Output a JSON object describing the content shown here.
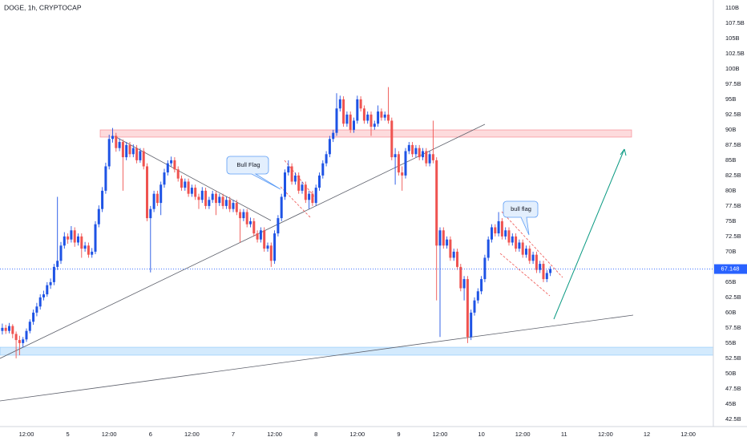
{
  "chart_data": {
    "type": "candlestick",
    "title": "DOGE, 1h, CRYPTOCAP",
    "up_color": "#1e53e5",
    "down_color": "#ef5350",
    "price_line_color": "#2962ff",
    "ylim": [
      41.3,
      111.3
    ],
    "yticks": [
      {
        "value": 110,
        "label": "110B"
      },
      {
        "value": 107.5,
        "label": "107.5B"
      },
      {
        "value": 105,
        "label": "105B"
      },
      {
        "value": 102.5,
        "label": "102.5B"
      },
      {
        "value": 100,
        "label": "100B"
      },
      {
        "value": 97.5,
        "label": "97.5B"
      },
      {
        "value": 95,
        "label": "95B"
      },
      {
        "value": 92.5,
        "label": "92.5B"
      },
      {
        "value": 90,
        "label": "90B"
      },
      {
        "value": 87.5,
        "label": "87.5B"
      },
      {
        "value": 85,
        "label": "85B"
      },
      {
        "value": 82.5,
        "label": "82.5B"
      },
      {
        "value": 80,
        "label": "80B"
      },
      {
        "value": 77.5,
        "label": "77.5B"
      },
      {
        "value": 75,
        "label": "75B"
      },
      {
        "value": 72.5,
        "label": "72.5B"
      },
      {
        "value": 70,
        "label": "70B"
      },
      {
        "value": 65,
        "label": "65B"
      },
      {
        "value": 62.5,
        "label": "62.5B"
      },
      {
        "value": 60,
        "label": "60B"
      },
      {
        "value": 57.5,
        "label": "57.5B"
      },
      {
        "value": 55,
        "label": "55B"
      },
      {
        "value": 52.5,
        "label": "52.5B"
      },
      {
        "value": 50,
        "label": "50B"
      },
      {
        "value": 47.5,
        "label": "47.5B"
      },
      {
        "value": 45,
        "label": "45B"
      },
      {
        "value": 42.5,
        "label": "42.5B"
      }
    ],
    "last_price": 67.148,
    "annotations": [
      "Bull Flag",
      "bull flag"
    ],
    "categories": [
      null,
      null,
      null,
      null,
      null,
      null,
      null,
      "12:00",
      null,
      null,
      null,
      null,
      null,
      null,
      null,
      null,
      null,
      null,
      null,
      "5",
      null,
      null,
      null,
      null,
      null,
      null,
      null,
      null,
      null,
      null,
      null,
      "12:00",
      null,
      null,
      null,
      null,
      null,
      null,
      null,
      null,
      null,
      null,
      null,
      "6",
      null,
      null,
      null,
      null,
      null,
      null,
      null,
      null,
      null,
      null,
      null,
      "12:00",
      null,
      null,
      null,
      null,
      null,
      null,
      null,
      null,
      null,
      null,
      null,
      "7",
      null,
      null,
      null,
      null,
      null,
      null,
      null,
      null,
      null,
      null,
      null,
      "12:00",
      null,
      null,
      null,
      null,
      null,
      null,
      null,
      null,
      null,
      null,
      null,
      "8",
      null,
      null,
      null,
      null,
      null,
      null,
      null,
      null,
      null,
      null,
      null,
      "12:00",
      null,
      null,
      null,
      null,
      null,
      null,
      null,
      null,
      null,
      null,
      null,
      "9",
      null,
      null,
      null,
      null,
      null,
      null,
      null,
      null,
      null,
      null,
      null,
      "12:00",
      null,
      null,
      null,
      null,
      null,
      null,
      null,
      null,
      null,
      null,
      null,
      "10",
      null,
      null,
      null,
      null,
      null,
      null,
      null,
      null,
      null,
      null,
      null,
      "12:00",
      null,
      null,
      null,
      null,
      null,
      null,
      null,
      null,
      null,
      null,
      null,
      "11",
      null,
      null,
      null,
      null,
      null,
      null,
      null,
      null,
      null,
      null,
      null,
      "12:00",
      null,
      null,
      null,
      null,
      null,
      null,
      null,
      null,
      null,
      null,
      null,
      "12",
      null,
      null,
      null,
      null,
      null,
      null,
      null,
      null,
      null,
      null,
      null,
      "12:00"
    ],
    "candles": [
      [
        57.0,
        58.2,
        56.4,
        57.5
      ],
      [
        57.5,
        58.0,
        56.5,
        57.0
      ],
      [
        57.0,
        58.3,
        56.6,
        57.8
      ],
      [
        57.8,
        58.1,
        55.8,
        56.5
      ],
      [
        56.5,
        56.9,
        52.5,
        55.5
      ],
      [
        55.5,
        56.2,
        53.0,
        55.0
      ],
      [
        55.0,
        56.0,
        54.3,
        55.6
      ],
      [
        55.6,
        57.4,
        55.2,
        57.0
      ],
      [
        57.0,
        58.9,
        56.6,
        58.5
      ],
      [
        58.5,
        60.5,
        58.0,
        60.0
      ],
      [
        60.0,
        61.6,
        59.4,
        61.0
      ],
      [
        61.0,
        63.0,
        60.5,
        62.5
      ],
      [
        62.5,
        63.6,
        62.0,
        63.0
      ],
      [
        63.0,
        65.0,
        62.6,
        64.5
      ],
      [
        64.5,
        65.6,
        63.9,
        65.0
      ],
      [
        65.0,
        68.0,
        64.5,
        67.5
      ],
      [
        67.5,
        79.0,
        67.0,
        68.5
      ],
      [
        68.5,
        71.6,
        68.0,
        71.0
      ],
      [
        71.0,
        73.2,
        70.5,
        72.5
      ],
      [
        72.5,
        73.0,
        71.3,
        72.0
      ],
      [
        72.0,
        74.2,
        71.5,
        73.5
      ],
      [
        73.5,
        74.0,
        70.8,
        71.5
      ],
      [
        71.5,
        73.0,
        71.0,
        72.5
      ],
      [
        72.5,
        73.0,
        69.0,
        70.5
      ],
      [
        70.5,
        71.6,
        70.0,
        71.0
      ],
      [
        71.0,
        71.5,
        69.0,
        69.5
      ],
      [
        69.5,
        70.6,
        69.0,
        70.0
      ],
      [
        70.0,
        75.0,
        69.6,
        74.5
      ],
      [
        74.5,
        77.6,
        74.0,
        77.0
      ],
      [
        77.0,
        80.6,
        76.5,
        80.0
      ],
      [
        80.0,
        84.6,
        79.5,
        84.0
      ],
      [
        84.0,
        89.2,
        83.5,
        88.5
      ],
      [
        88.5,
        90.3,
        87.9,
        89.0
      ],
      [
        89.0,
        89.5,
        86.4,
        87.0
      ],
      [
        87.0,
        88.6,
        86.5,
        88.0
      ],
      [
        88.0,
        88.4,
        80.0,
        85.5
      ],
      [
        85.5,
        88.0,
        85.0,
        87.5
      ],
      [
        87.5,
        88.0,
        85.5,
        86.0
      ],
      [
        86.0,
        87.6,
        85.5,
        87.0
      ],
      [
        87.0,
        87.5,
        84.5,
        85.0
      ],
      [
        85.0,
        87.0,
        84.6,
        86.5
      ],
      [
        86.5,
        87.0,
        83.5,
        84.0
      ],
      [
        84.0,
        84.5,
        75.0,
        75.5
      ],
      [
        75.5,
        77.5,
        66.6,
        77.0
      ],
      [
        77.0,
        80.0,
        76.5,
        79.5
      ],
      [
        79.5,
        80.0,
        77.5,
        78.0
      ],
      [
        78.0,
        81.5,
        76.0,
        81.0
      ],
      [
        81.0,
        83.6,
        80.5,
        83.0
      ],
      [
        83.0,
        85.0,
        82.5,
        84.5
      ],
      [
        84.5,
        85.6,
        84.0,
        85.0
      ],
      [
        85.0,
        85.5,
        83.0,
        83.5
      ],
      [
        83.5,
        84.0,
        81.5,
        82.0
      ],
      [
        82.0,
        82.5,
        80.0,
        80.5
      ],
      [
        80.5,
        82.0,
        80.0,
        81.5
      ],
      [
        81.5,
        82.0,
        79.0,
        79.5
      ],
      [
        79.5,
        81.0,
        79.0,
        80.5
      ],
      [
        80.5,
        81.0,
        78.5,
        79.0
      ],
      [
        79.0,
        79.5,
        77.0,
        78.5
      ],
      [
        78.5,
        80.6,
        78.0,
        80.0
      ],
      [
        80.0,
        80.5,
        77.0,
        77.5
      ],
      [
        77.5,
        79.0,
        77.0,
        78.5
      ],
      [
        78.5,
        80.0,
        78.0,
        79.5
      ],
      [
        79.5,
        80.0,
        76.0,
        78.0
      ],
      [
        78.0,
        79.5,
        77.5,
        79.0
      ],
      [
        79.0,
        79.5,
        77.0,
        77.5
      ],
      [
        77.5,
        79.0,
        77.0,
        78.5
      ],
      [
        78.5,
        79.0,
        76.5,
        77.0
      ],
      [
        77.0,
        78.5,
        76.5,
        78.0
      ],
      [
        78.0,
        78.5,
        76.0,
        76.5
      ],
      [
        76.5,
        77.0,
        71.5,
        75.5
      ],
      [
        75.5,
        77.0,
        75.0,
        76.5
      ],
      [
        76.5,
        77.0,
        74.0,
        74.5
      ],
      [
        74.5,
        75.6,
        74.0,
        75.0
      ],
      [
        75.0,
        75.5,
        72.5,
        73.0
      ],
      [
        73.0,
        73.5,
        71.5,
        72.0
      ],
      [
        72.0,
        74.0,
        71.5,
        73.5
      ],
      [
        73.5,
        74.0,
        70.0,
        70.5
      ],
      [
        70.5,
        71.5,
        70.0,
        71.0
      ],
      [
        71.0,
        71.5,
        67.5,
        68.5
      ],
      [
        68.5,
        73.5,
        68.0,
        73.0
      ],
      [
        73.0,
        76.0,
        72.5,
        75.5
      ],
      [
        75.5,
        79.5,
        75.0,
        79.0
      ],
      [
        79.0,
        83.5,
        78.5,
        83.0
      ],
      [
        83.0,
        85.0,
        82.5,
        84.0
      ],
      [
        84.0,
        84.5,
        81.0,
        81.5
      ],
      [
        81.5,
        83.0,
        81.0,
        82.5
      ],
      [
        82.5,
        83.0,
        79.5,
        80.0
      ],
      [
        80.0,
        81.5,
        79.5,
        81.0
      ],
      [
        81.0,
        81.5,
        78.0,
        78.5
      ],
      [
        78.5,
        80.0,
        77.0,
        79.5
      ],
      [
        79.5,
        80.0,
        77.5,
        78.0
      ],
      [
        78.0,
        81.0,
        77.5,
        80.5
      ],
      [
        80.5,
        83.0,
        80.0,
        82.5
      ],
      [
        82.5,
        85.0,
        82.0,
        84.5
      ],
      [
        84.5,
        86.5,
        84.0,
        86.0
      ],
      [
        86.0,
        89.0,
        85.5,
        88.5
      ],
      [
        88.5,
        90.0,
        88.0,
        89.5
      ],
      [
        89.5,
        96.0,
        89.0,
        93.5
      ],
      [
        93.5,
        95.6,
        93.0,
        95.0
      ],
      [
        95.0,
        95.5,
        90.5,
        91.0
      ],
      [
        91.0,
        93.0,
        90.5,
        92.5
      ],
      [
        92.5,
        93.0,
        89.5,
        90.0
      ],
      [
        90.0,
        92.0,
        89.5,
        91.5
      ],
      [
        91.5,
        95.6,
        91.0,
        95.0
      ],
      [
        95.0,
        95.5,
        93.0,
        93.5
      ],
      [
        93.5,
        94.0,
        91.0,
        91.5
      ],
      [
        91.5,
        93.0,
        91.0,
        92.5
      ],
      [
        92.5,
        93.0,
        89.0,
        90.5
      ],
      [
        90.5,
        91.5,
        90.0,
        91.0
      ],
      [
        91.0,
        94.0,
        90.5,
        93.0
      ],
      [
        93.0,
        93.5,
        91.5,
        92.0
      ],
      [
        92.0,
        93.0,
        91.5,
        92.5
      ],
      [
        92.5,
        97.0,
        91.0,
        91.5
      ],
      [
        91.5,
        92.0,
        85.0,
        85.5
      ],
      [
        85.5,
        87.0,
        81.0,
        86.0
      ],
      [
        86.0,
        86.5,
        82.5,
        83.0
      ],
      [
        83.0,
        84.0,
        80.0,
        82.5
      ],
      [
        82.5,
        87.0,
        82.0,
        86.5
      ],
      [
        86.5,
        88.0,
        86.0,
        87.5
      ],
      [
        87.5,
        88.0,
        85.5,
        86.0
      ],
      [
        86.0,
        87.5,
        85.5,
        87.0
      ],
      [
        87.0,
        87.5,
        85.0,
        85.5
      ],
      [
        85.5,
        87.0,
        85.0,
        86.5
      ],
      [
        86.5,
        87.0,
        84.0,
        84.5
      ],
      [
        84.5,
        86.5,
        84.0,
        86.0
      ],
      [
        86.0,
        91.5,
        84.5,
        85.0
      ],
      [
        85.0,
        85.5,
        62.0,
        71.0
      ],
      [
        71.0,
        74.0,
        56.0,
        73.5
      ],
      [
        73.5,
        74.0,
        70.5,
        71.0
      ],
      [
        71.0,
        72.5,
        70.5,
        72.0
      ],
      [
        72.0,
        72.5,
        68.5,
        69.0
      ],
      [
        69.0,
        70.5,
        68.5,
        70.0
      ],
      [
        70.0,
        70.5,
        67.0,
        67.5
      ],
      [
        67.5,
        68.0,
        63.5,
        64.0
      ],
      [
        64.0,
        66.0,
        62.0,
        65.5
      ],
      [
        65.5,
        66.0,
        55.0,
        56.0
      ],
      [
        56.0,
        60.5,
        55.5,
        60.0
      ],
      [
        60.0,
        62.5,
        59.5,
        62.0
      ],
      [
        62.0,
        64.0,
        61.5,
        63.5
      ],
      [
        63.5,
        66.0,
        63.0,
        65.5
      ],
      [
        65.5,
        69.5,
        65.0,
        69.0
      ],
      [
        69.0,
        72.5,
        68.5,
        72.0
      ],
      [
        72.0,
        74.5,
        71.5,
        74.0
      ],
      [
        74.0,
        74.5,
        72.5,
        73.0
      ],
      [
        73.0,
        76.5,
        72.5,
        75.0
      ],
      [
        75.0,
        75.5,
        72.0,
        72.5
      ],
      [
        72.5,
        74.0,
        72.0,
        73.5
      ],
      [
        73.5,
        74.0,
        71.0,
        71.5
      ],
      [
        71.5,
        73.0,
        71.0,
        72.5
      ],
      [
        72.5,
        73.0,
        70.0,
        70.5
      ],
      [
        70.5,
        72.0,
        70.0,
        71.5
      ],
      [
        71.5,
        72.0,
        69.0,
        69.5
      ],
      [
        69.5,
        71.0,
        69.0,
        70.5
      ],
      [
        70.5,
        71.0,
        68.0,
        68.5
      ],
      [
        68.5,
        70.0,
        68.0,
        69.5
      ],
      [
        69.5,
        70.0,
        66.5,
        67.0
      ],
      [
        67.0,
        68.5,
        66.5,
        68.0
      ],
      [
        68.0,
        68.5,
        65.0,
        65.5
      ],
      [
        65.5,
        67.0,
        65.0,
        66.5
      ],
      [
        66.5,
        67.6,
        66.0,
        67.148
      ],
      null,
      null,
      null,
      null,
      null,
      null,
      null,
      null,
      null,
      null,
      null,
      null,
      null,
      null,
      null,
      null,
      null,
      null,
      null,
      null,
      null,
      null,
      null,
      null,
      null,
      null,
      null,
      null,
      null,
      null,
      null,
      null,
      null,
      null,
      null,
      null,
      null,
      null,
      null,
      null
    ]
  }
}
